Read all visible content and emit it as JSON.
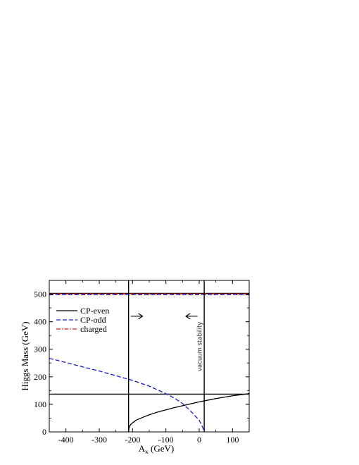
{
  "chart_data": {
    "type": "line",
    "xlabel": "A",
    "xlabel_sub": "κ",
    "xlabel_unit": " (GeV)",
    "ylabel": "Higgs Mass (GeV)",
    "xlim": [
      -450,
      150
    ],
    "ylim": [
      0,
      550
    ],
    "x_ticks": [
      -400,
      -300,
      -200,
      -100,
      0,
      100
    ],
    "x_tick_labels": [
      "-400",
      "-300",
      "-200",
      "-100",
      "0",
      "100"
    ],
    "y_ticks": [
      0,
      100,
      200,
      300,
      400,
      500
    ],
    "y_tick_labels": [
      "0",
      "100",
      "200",
      "300",
      "400",
      "500"
    ],
    "legend_position": "top-left",
    "series": [
      {
        "name": "CP-even",
        "color": "#000000",
        "dash": "solid",
        "segments": [
          {
            "x": [
              -450,
              150
            ],
            "y": [
              137,
              137
            ]
          },
          {
            "x": [
              -450,
              150
            ],
            "y": [
              503,
              503
            ]
          },
          {
            "x": [
              -212,
              -211,
              -209,
              -206,
              -200,
              -190,
              -175,
              -150,
              -125,
              -100,
              -75,
              -50,
              -25,
              0,
              25,
              50,
              75,
              100,
              125,
              150
            ],
            "y": [
              0,
              12,
              20,
              26,
              33,
              42,
              50,
              62,
              72,
              80,
              88,
              95,
              102,
              109,
              115,
              121,
              126,
              131,
              135,
              139
            ]
          }
        ]
      },
      {
        "name": "CP-odd",
        "color": "#1a1ad6",
        "dash": "dashed",
        "segments": [
          {
            "x": [
              -450,
              -400,
              -350,
              -300,
              -250,
              -200,
              -150,
              -100,
              -75,
              -50,
              -25,
              0,
              10,
              15
            ],
            "y": [
              267,
              252,
              236,
              221,
              204,
              187,
              166,
              139,
              123,
              103,
              75,
              42,
              18,
              0
            ]
          },
          {
            "x": [
              -450,
              150
            ],
            "y": [
              498,
              498
            ]
          }
        ]
      },
      {
        "name": "charged",
        "color": "#d21f1f",
        "dash": "dashdot",
        "segments": [
          {
            "x": [
              -450,
              150
            ],
            "y": [
              501,
              501
            ]
          }
        ]
      }
    ],
    "vertical_lines": [
      -212,
      15
    ],
    "arrows": [
      {
        "x_from": -205,
        "x_to": -170,
        "y": 420
      },
      {
        "x_from": -5,
        "x_to": -40,
        "y": 420
      }
    ],
    "annotations": [
      {
        "text": "vacuum stability",
        "x": 7,
        "y": 310,
        "rotation": -90
      }
    ]
  }
}
